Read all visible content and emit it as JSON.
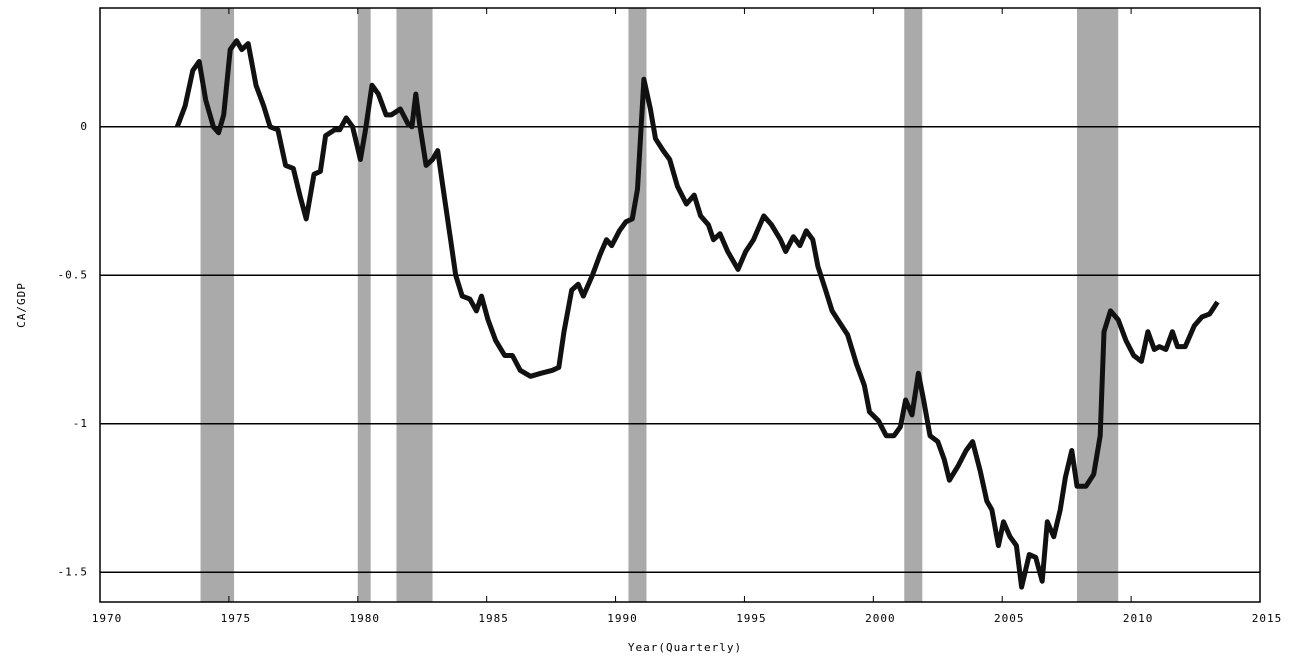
{
  "chart_data": {
    "type": "line",
    "x_label": "Year(Quarterly)",
    "y_label": "CA/GDP",
    "x": [
      1973.0,
      1973.3,
      1973.6,
      1973.85,
      1974.1,
      1974.4,
      1974.6,
      1974.8,
      1975.05,
      1975.3,
      1975.5,
      1975.75,
      1976.05,
      1976.35,
      1976.6,
      1976.9,
      1977.2,
      1977.5,
      1977.75,
      1978.0,
      1978.3,
      1978.55,
      1978.75,
      1979.1,
      1979.3,
      1979.55,
      1979.8,
      1980.1,
      1980.3,
      1980.55,
      1980.8,
      1981.1,
      1981.3,
      1981.65,
      1981.95,
      1982.1,
      1982.25,
      1982.4,
      1982.65,
      1982.9,
      1983.1,
      1983.35,
      1983.6,
      1983.8,
      1984.05,
      1984.35,
      1984.6,
      1984.8,
      1985.05,
      1985.35,
      1985.7,
      1986.0,
      1986.3,
      1986.7,
      1987.1,
      1987.55,
      1987.8,
      1988.0,
      1988.3,
      1988.55,
      1988.75,
      1989.1,
      1989.4,
      1989.65,
      1989.85,
      1990.15,
      1990.4,
      1990.65,
      1990.85,
      1991.1,
      1991.35,
      1991.55,
      1991.85,
      1992.1,
      1992.4,
      1992.75,
      1993.05,
      1993.3,
      1993.6,
      1993.8,
      1994.05,
      1994.35,
      1994.75,
      1995.05,
      1995.35,
      1995.75,
      1996.05,
      1996.4,
      1996.6,
      1996.9,
      1997.15,
      1997.4,
      1997.65,
      1997.85,
      1998.15,
      1998.4,
      1998.7,
      1999.0,
      1999.35,
      1999.65,
      1999.85,
      2000.2,
      2000.5,
      2000.8,
      2001.05,
      2001.25,
      2001.5,
      2001.75,
      2001.95,
      2002.2,
      2002.5,
      2002.75,
      2002.95,
      2003.3,
      2003.6,
      2003.85,
      2004.15,
      2004.4,
      2004.6,
      2004.85,
      2005.05,
      2005.3,
      2005.55,
      2005.75,
      2006.05,
      2006.3,
      2006.55,
      2006.75,
      2007.0,
      2007.25,
      2007.45,
      2007.7,
      2007.9,
      2008.25,
      2008.55,
      2008.8,
      2008.95,
      2009.2,
      2009.5,
      2009.8,
      2010.1,
      2010.4,
      2010.65,
      2010.9,
      2011.1,
      2011.35,
      2011.6,
      2011.8,
      2012.1,
      2012.45,
      2012.75,
      2013.05,
      2013.35
    ],
    "values": [
      0.0,
      0.07,
      0.19,
      0.22,
      0.09,
      0.0,
      -0.02,
      0.04,
      0.26,
      0.29,
      0.26,
      0.28,
      0.14,
      0.07,
      0.0,
      -0.01,
      -0.13,
      -0.14,
      -0.23,
      -0.31,
      -0.16,
      -0.15,
      -0.03,
      -0.01,
      -0.01,
      0.03,
      0.0,
      -0.11,
      -0.01,
      0.14,
      0.11,
      0.04,
      0.04,
      0.06,
      0.01,
      0.0,
      0.11,
      0.01,
      -0.13,
      -0.11,
      -0.08,
      -0.23,
      -0.38,
      -0.5,
      -0.57,
      -0.58,
      -0.62,
      -0.57,
      -0.65,
      -0.72,
      -0.77,
      -0.77,
      -0.82,
      -0.84,
      -0.83,
      -0.82,
      -0.81,
      -0.69,
      -0.55,
      -0.53,
      -0.57,
      -0.5,
      -0.43,
      -0.38,
      -0.4,
      -0.35,
      -0.32,
      -0.31,
      -0.21,
      0.16,
      0.06,
      -0.04,
      -0.08,
      -0.11,
      -0.2,
      -0.26,
      -0.23,
      -0.3,
      -0.33,
      -0.38,
      -0.36,
      -0.42,
      -0.48,
      -0.42,
      -0.38,
      -0.3,
      -0.33,
      -0.38,
      -0.42,
      -0.37,
      -0.4,
      -0.35,
      -0.38,
      -0.47,
      -0.55,
      -0.62,
      -0.66,
      -0.7,
      -0.8,
      -0.87,
      -0.96,
      -0.99,
      -1.04,
      -1.04,
      -1.01,
      -0.92,
      -0.97,
      -0.83,
      -0.92,
      -1.04,
      -1.06,
      -1.12,
      -1.19,
      -1.14,
      -1.09,
      -1.06,
      -1.16,
      -1.26,
      -1.29,
      -1.41,
      -1.33,
      -1.38,
      -1.41,
      -1.55,
      -1.44,
      -1.45,
      -1.53,
      -1.33,
      -1.38,
      -1.29,
      -1.18,
      -1.09,
      -1.21,
      -1.21,
      -1.17,
      -1.04,
      -0.69,
      -0.62,
      -0.65,
      -0.72,
      -0.77,
      -0.79,
      -0.69,
      -0.75,
      -0.74,
      -0.75,
      -0.69,
      -0.74,
      -0.74,
      -0.67,
      -0.64,
      -0.63,
      -0.59
    ],
    "color": "#111111",
    "recessions": [
      [
        1973.9,
        1975.2
      ],
      [
        1980.0,
        1980.5
      ],
      [
        1981.5,
        1982.9
      ],
      [
        1990.5,
        1991.2
      ],
      [
        2001.2,
        2001.9
      ],
      [
        2007.9,
        2009.5
      ]
    ],
    "recession_color": "#aaaaaa",
    "xlim": [
      1970,
      2015
    ],
    "xticks": [
      1970,
      1975,
      1980,
      1985,
      1990,
      1995,
      2000,
      2005,
      2010,
      2015
    ],
    "ylim": [
      -1.6,
      0.4
    ],
    "yticks": [
      -1.5,
      -1,
      -0.5,
      0
    ],
    "grid": true
  }
}
